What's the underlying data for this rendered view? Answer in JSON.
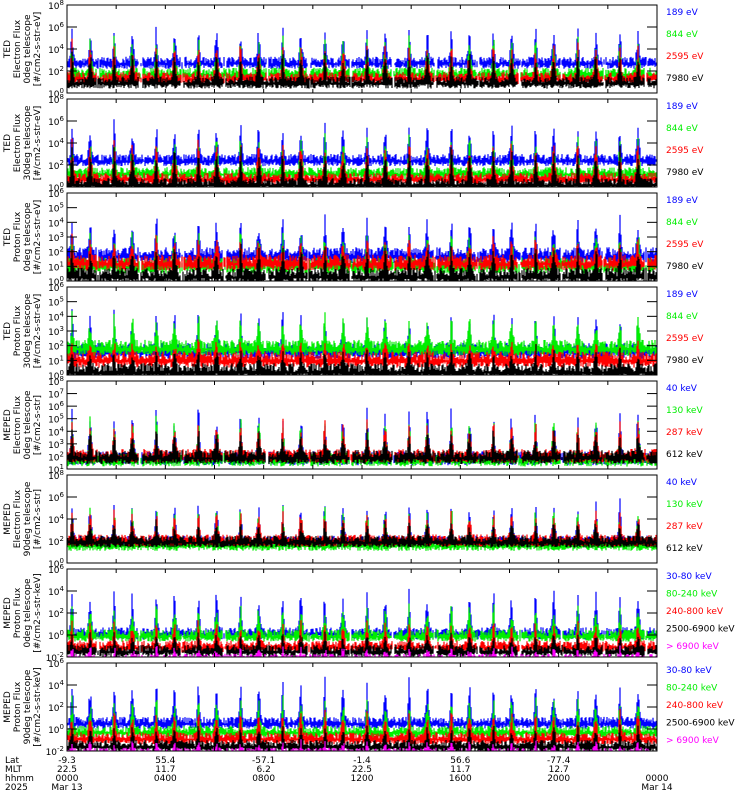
{
  "chart_data": {
    "type": "line",
    "title": "",
    "x_axis": {
      "label_rows": [
        "Lat",
        "MLT",
        "hhmm",
        "2025"
      ],
      "ticks": [
        {
          "hhmm": "0000",
          "lat": "-9.3",
          "mlt": "22.5",
          "date": "Mar 13"
        },
        {
          "hhmm": "0400",
          "lat": "55.4",
          "mlt": "11.7",
          "date": ""
        },
        {
          "hhmm": "0800",
          "lat": "-57.1",
          "mlt": "6.2",
          "date": ""
        },
        {
          "hhmm": "1200",
          "lat": "-1.4",
          "mlt": "22.5",
          "date": ""
        },
        {
          "hhmm": "1600",
          "lat": "56.6",
          "mlt": "11.7",
          "date": ""
        },
        {
          "hhmm": "2000",
          "lat": "-77.4",
          "mlt": "12.7",
          "date": ""
        },
        {
          "hhmm": "0000",
          "lat": "",
          "mlt": "",
          "date": "Mar 14"
        }
      ],
      "range_hours": [
        0,
        24
      ]
    },
    "panels": [
      {
        "ylabel": [
          "TED",
          "Electron Flux",
          "0deg telescope",
          "[#/cm2-s-str-eV]"
        ],
        "ylim_exp": [
          0,
          8
        ],
        "yticks": [
          "10^0",
          "10^2",
          "10^4",
          "10^6",
          "10^8"
        ],
        "series": [
          {
            "name": "7980 eV",
            "color": "#000000",
            "base": 1.2,
            "peak": 4.0
          },
          {
            "name": "2595 eV",
            "color": "#ff0000",
            "base": 1.6,
            "peak": 4.8
          },
          {
            "name": "844 eV",
            "color": "#00ee00",
            "base": 2.0,
            "peak": 5.2
          },
          {
            "name": "189 eV",
            "color": "#0000ff",
            "base": 3.0,
            "peak": 6.3
          }
        ]
      },
      {
        "ylabel": [
          "TED",
          "Electron Flux",
          "30deg telescope",
          "[#/cm2-s-str-eV]"
        ],
        "ylim_exp": [
          0,
          8
        ],
        "yticks": [
          "10^0",
          "10^2",
          "10^4",
          "10^6",
          "10^8"
        ],
        "series": [
          {
            "name": "7980 eV",
            "color": "#000000",
            "base": 0.5,
            "peak": 3.8
          },
          {
            "name": "2595 eV",
            "color": "#ff0000",
            "base": 1.0,
            "peak": 4.6
          },
          {
            "name": "844 eV",
            "color": "#00ee00",
            "base": 1.5,
            "peak": 5.0
          },
          {
            "name": "189 eV",
            "color": "#0000ff",
            "base": 2.7,
            "peak": 6.0
          }
        ]
      },
      {
        "ylabel": [
          "TED",
          "Proton Flux",
          "0deg telescope",
          "[#/cm2-s-str-eV]"
        ],
        "ylim_exp": [
          0,
          6
        ],
        "yticks": [
          "10^0",
          "10^1",
          "10^2",
          "10^3",
          "10^4",
          "10^5",
          "10^6"
        ],
        "series": [
          {
            "name": "7980 eV",
            "color": "#000000",
            "base": 0.6,
            "peak": 2.5
          },
          {
            "name": "2595 eV",
            "color": "#ff0000",
            "base": 1.5,
            "peak": 3.0
          },
          {
            "name": "844 eV",
            "color": "#00ee00",
            "base": 1.3,
            "peak": 3.6
          },
          {
            "name": "189 eV",
            "color": "#0000ff",
            "base": 2.0,
            "peak": 4.6
          }
        ]
      },
      {
        "ylabel": [
          "TED",
          "Proton Flux",
          "30deg telescope",
          "[#/cm2-s-str-eV]"
        ],
        "ylim_exp": [
          0,
          6
        ],
        "yticks": [
          "10^0",
          "10^1",
          "10^2",
          "10^3",
          "10^4",
          "10^5",
          "10^6"
        ],
        "series": [
          {
            "name": "7980 eV",
            "color": "#000000",
            "base": 0.5,
            "peak": 2.0
          },
          {
            "name": "2595 eV",
            "color": "#ff0000",
            "base": 1.3,
            "peak": 2.4
          },
          {
            "name": "844 eV",
            "color": "#00ee00",
            "base": 2.1,
            "peak": 4.2
          },
          {
            "name": "189 eV",
            "color": "#0000ff",
            "base": 1.9,
            "peak": 4.5
          }
        ]
      },
      {
        "ylabel": [
          "MEPED",
          "Electron Flux",
          "0deg telescope",
          "[#/cm2-s-str]"
        ],
        "ylim_exp": [
          1,
          8
        ],
        "yticks": [
          "10^1",
          "10^2",
          "10^3",
          "10^4",
          "10^5",
          "10^6",
          "10^7",
          "10^8"
        ],
        "series": [
          {
            "name": "612 keV",
            "color": "#000000",
            "base": 2.2,
            "peak": 4.2
          },
          {
            "name": "287 keV",
            "color": "#ff0000",
            "base": 2.3,
            "peak": 5.0
          },
          {
            "name": "130 keV",
            "color": "#00ee00",
            "base": 2.0,
            "peak": 5.6
          },
          {
            "name": "40 keV",
            "color": "#0000ff",
            "base": 2.1,
            "peak": 6.2
          }
        ]
      },
      {
        "ylabel": [
          "MEPED",
          "Electron Flux",
          "90deg telescope",
          "[#/cm2-s-str]"
        ],
        "ylim_exp": [
          0,
          8
        ],
        "yticks": [
          "10^0",
          "10^2",
          "10^4",
          "10^6",
          "10^8"
        ],
        "series": [
          {
            "name": "612 keV",
            "color": "#000000",
            "base": 2.2,
            "peak": 4.0
          },
          {
            "name": "287 keV",
            "color": "#ff0000",
            "base": 2.3,
            "peak": 5.0
          },
          {
            "name": "130 keV",
            "color": "#00ee00",
            "base": 1.9,
            "peak": 5.5
          },
          {
            "name": "40 keV",
            "color": "#0000ff",
            "base": 2.2,
            "peak": 6.0
          }
        ]
      },
      {
        "ylabel": [
          "MEPED",
          "Proton Flux",
          "0deg telescope",
          "[#/cm2-s-str-keV]"
        ],
        "ylim_exp": [
          -2,
          6
        ],
        "yticks": [
          "10^-2",
          "10^0",
          "10^2",
          "10^4",
          "10^6"
        ],
        "series": [
          {
            "name": "> 6900 keV",
            "color": "#ff00ff",
            "base": -2.0,
            "peak": -1.0
          },
          {
            "name": "2500-6900 keV",
            "color": "#000000",
            "base": -1.2,
            "peak": 0.3
          },
          {
            "name": "240-800 keV",
            "color": "#ff0000",
            "base": -0.8,
            "peak": 1.5
          },
          {
            "name": "80-240 keV",
            "color": "#00ee00",
            "base": 0.2,
            "peak": 3.0
          },
          {
            "name": "30-80 keV",
            "color": "#0000ff",
            "base": 0.4,
            "peak": 4.5
          }
        ]
      },
      {
        "ylabel": [
          "MEPED",
          "Proton Flux",
          "90deg telescope",
          "[#/cm2-s-str-keV]"
        ],
        "ylim_exp": [
          -2,
          6
        ],
        "yticks": [
          "10^-2",
          "10^0",
          "10^2",
          "10^4",
          "10^6"
        ],
        "series": [
          {
            "name": "> 6900 keV",
            "color": "#ff00ff",
            "base": -2.0,
            "peak": -1.0
          },
          {
            "name": "2500-6900 keV",
            "color": "#000000",
            "base": -1.3,
            "peak": 0.5
          },
          {
            "name": "240-800 keV",
            "color": "#ff0000",
            "base": -0.6,
            "peak": 1.8
          },
          {
            "name": "80-240 keV",
            "color": "#00ee00",
            "base": 0.0,
            "peak": 3.2
          },
          {
            "name": "30-80 keV",
            "color": "#0000ff",
            "base": 0.8,
            "peak": 4.6
          }
        ]
      }
    ],
    "orbit_passes_per_day": 14
  }
}
